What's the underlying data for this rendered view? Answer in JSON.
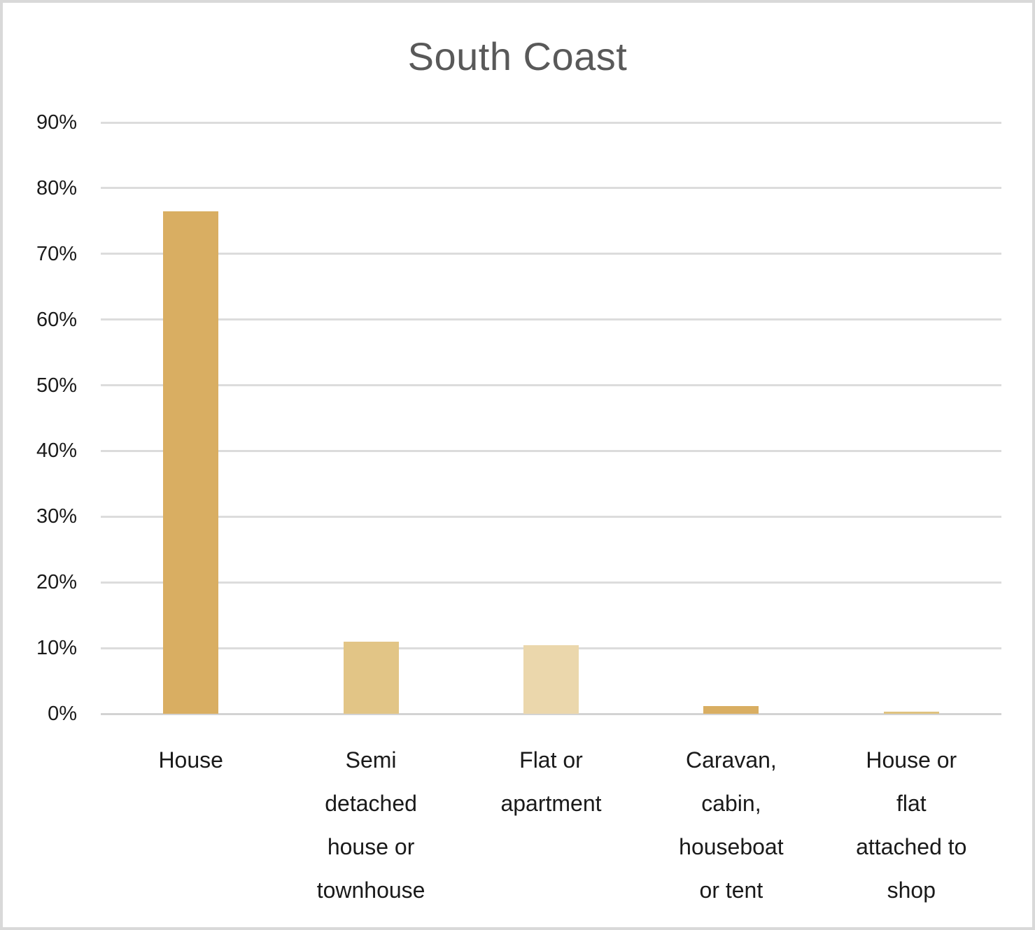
{
  "chart_data": {
    "type": "bar",
    "title": "South Coast",
    "categories": [
      "House",
      "Semi detached house or townhouse",
      "Flat or apartment",
      "Caravan, cabin, houseboat or tent",
      "House or flat attached to shop"
    ],
    "category_labels_wrapped": [
      "House",
      "Semi\ndetached\nhouse or\ntownhouse",
      "Flat or\napartment",
      "Caravan,\ncabin,\nhouseboat\nor tent",
      "House or\nflat\nattached to\nshop"
    ],
    "values": [
      76.5,
      11,
      10.4,
      1.2,
      0.3
    ],
    "bar_colors": [
      "#D9AE62",
      "#E2C586",
      "#EBD7AC",
      "#D9AE62",
      "#DFC27F"
    ],
    "xlabel": "",
    "ylabel": "",
    "ylim": [
      0,
      90
    ],
    "ytick_values": [
      0,
      10,
      20,
      30,
      40,
      50,
      60,
      70,
      80,
      90
    ],
    "ytick_labels": [
      "0%",
      "10%",
      "20%",
      "30%",
      "40%",
      "50%",
      "60%",
      "70%",
      "80%",
      "90%"
    ],
    "grid": "horizontal",
    "legend": "none"
  },
  "colors": {
    "title_text": "#595959",
    "axis_text": "#1a1a1a",
    "gridline": "#dcdcdc",
    "axis_line": "#d3d3d3",
    "frame_border": "#d9d9d9",
    "background": "#ffffff"
  }
}
